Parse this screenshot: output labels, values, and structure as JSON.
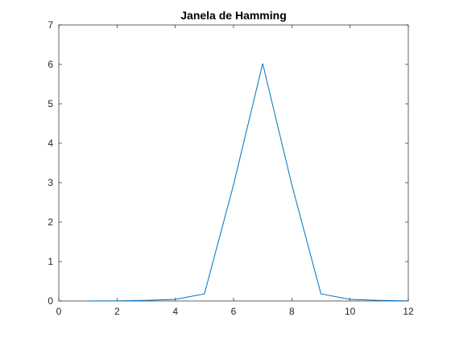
{
  "chart_data": {
    "type": "line",
    "title": "Janela de Hamming",
    "xlabel": "",
    "ylabel": "",
    "xlim": [
      0,
      12
    ],
    "ylim": [
      0,
      7
    ],
    "xticks": [
      0,
      2,
      4,
      6,
      8,
      10,
      12
    ],
    "yticks": [
      0,
      1,
      2,
      3,
      4,
      5,
      6,
      7
    ],
    "grid": false,
    "legend": "none",
    "series_color": "#0072BD",
    "axes_color": "#262626",
    "series": [
      {
        "x": [
          1,
          2,
          3,
          4,
          5,
          6,
          7,
          8,
          9,
          10,
          11
        ],
        "y": [
          0.0,
          0.003,
          0.014,
          0.04,
          0.18,
          2.95,
          6.02,
          2.95,
          0.18,
          0.04,
          0.014
        ]
      }
    ],
    "extra_segment": {
      "x": [
        11,
        12
      ],
      "y": [
        0.014,
        0.003
      ]
    }
  }
}
